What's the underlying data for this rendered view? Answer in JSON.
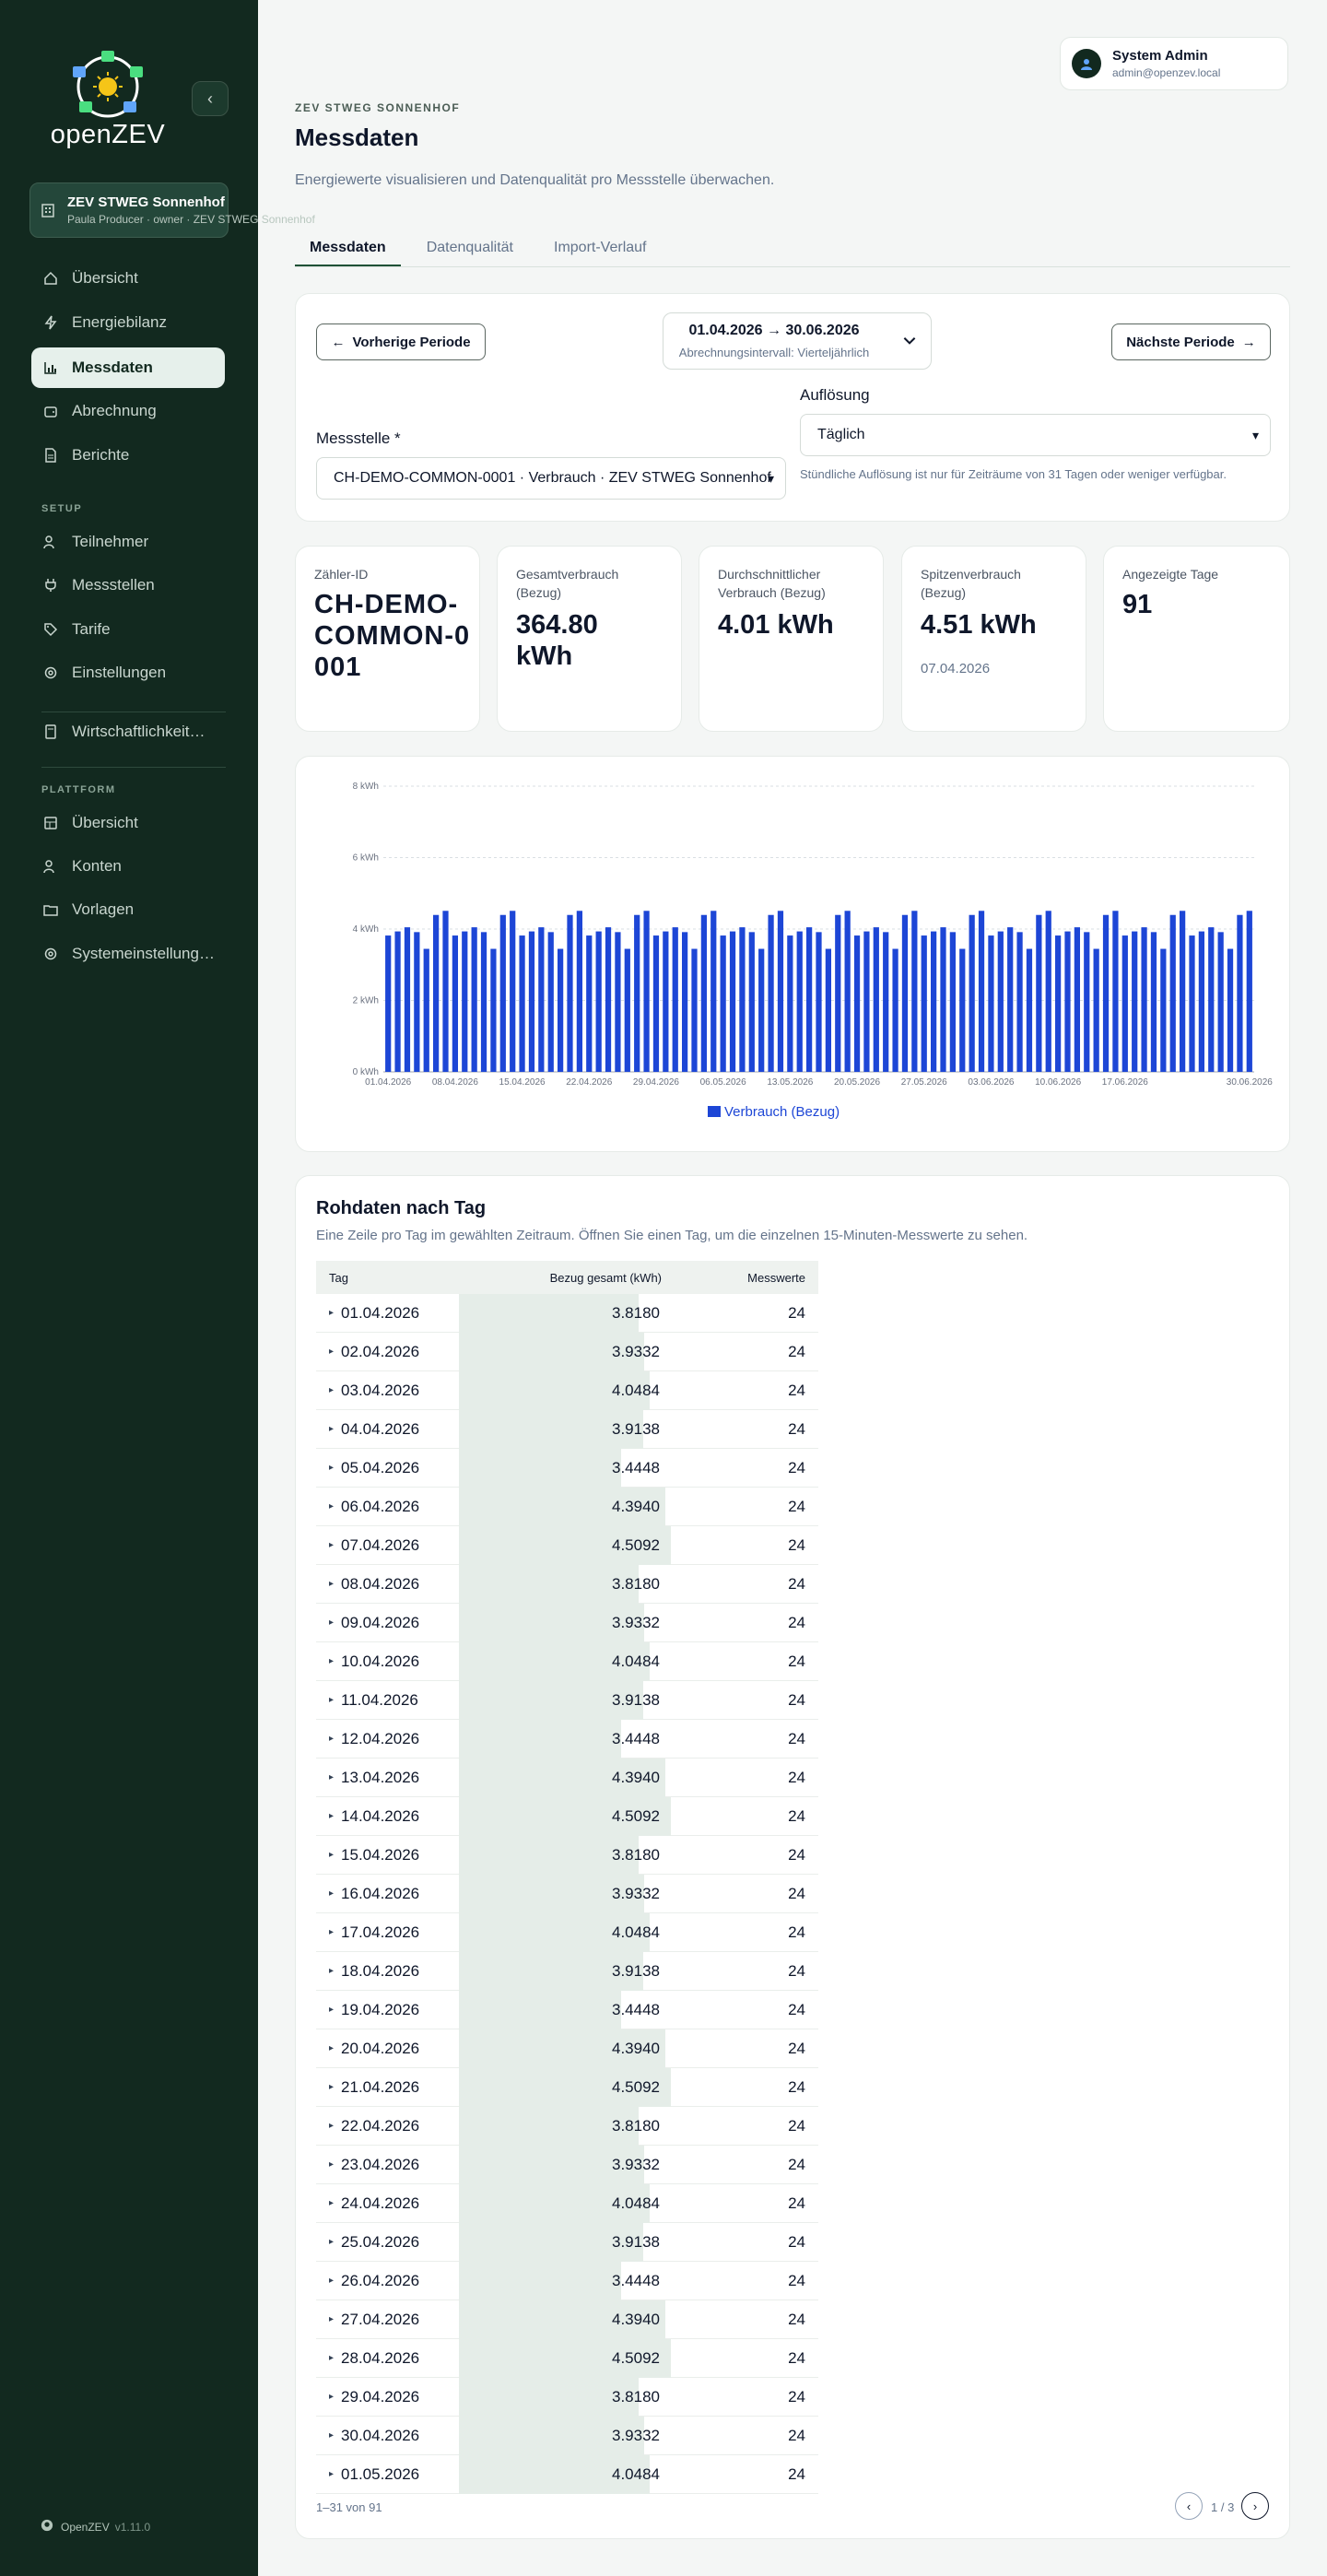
{
  "app": {
    "name": "openZEV",
    "version": "v1.11.0",
    "footer_name": "OpenZEV"
  },
  "org": {
    "name": "ZEV STWEG Sonnenhof",
    "sub": "Paula Producer · owner · ZEV STWEG Sonnenhof"
  },
  "sidebar": {
    "main_items": [
      {
        "label": "Übersicht",
        "icon": "home-icon"
      },
      {
        "label": "Energiebilanz",
        "icon": "bolt-icon"
      },
      {
        "label": "Messdaten",
        "icon": "bar-chart-icon",
        "active": true
      },
      {
        "label": "Abrechnung",
        "icon": "wallet-icon"
      },
      {
        "label": "Berichte",
        "icon": "document-icon"
      }
    ],
    "setup_label": "SETUP",
    "setup_items": [
      {
        "label": "Teilnehmer",
        "icon": "users-icon"
      },
      {
        "label": "Messstellen",
        "icon": "plug-icon"
      },
      {
        "label": "Tarife",
        "icon": "tag-icon"
      },
      {
        "label": "Einstellungen",
        "icon": "settings-icon"
      }
    ],
    "extra_item": {
      "label": "Wirtschaftlichkeit…",
      "icon": "calculator-icon"
    },
    "platform_label": "PLATTFORM",
    "platform_items": [
      {
        "label": "Übersicht",
        "icon": "dashboard-icon"
      },
      {
        "label": "Konten",
        "icon": "users-icon"
      },
      {
        "label": "Vorlagen",
        "icon": "folder-icon"
      },
      {
        "label": "Systemeinstellung…",
        "icon": "settings-icon"
      }
    ]
  },
  "user": {
    "name": "System Admin",
    "email": "admin@openzev.local"
  },
  "header": {
    "eyebrow": "ZEV STWEG SONNENHOF",
    "title": "Messdaten",
    "description": "Energiewerte visualisieren und Datenqualität pro Messstelle überwachen."
  },
  "tabs": [
    {
      "label": "Messdaten",
      "active": true
    },
    {
      "label": "Datenqualität"
    },
    {
      "label": "Import-Verlauf"
    }
  ],
  "period": {
    "prev_label": "Vorherige Periode",
    "next_label": "Nächste Periode",
    "range": "01.04.2026 → 30.06.2026",
    "interval": "Abrechnungsintervall: Vierteljährlich"
  },
  "filters": {
    "meter_label": "Messstelle *",
    "meter_value": "CH-DEMO-COMMON-0001 · Verbrauch · ZEV STWEG Sonnenhof",
    "resolution_label": "Auflösung",
    "resolution_value": "Täglich",
    "resolution_hint": "Stündliche Auflösung ist nur für Zeiträume von 31 Tagen oder weniger verfügbar."
  },
  "stats": {
    "meter_id_label": "Zähler-ID",
    "meter_id": "CH-DEMO-COMMON-0001",
    "total_label": "Gesamtverbrauch (Bezug)",
    "total": "364.80 kWh",
    "avg_label": "Durchschnittlicher Verbrauch (Bezug)",
    "avg": "4.01 kWh",
    "peak_label": "Spitzenverbrauch (Bezug)",
    "peak": "4.51 kWh",
    "peak_date": "07.04.2026",
    "days_label": "Angezeigte Tage",
    "days": "91"
  },
  "colors": {
    "bar": "#1d46d6",
    "sidebar": "#12291f",
    "accent": "#1f5136"
  },
  "chart_data": {
    "type": "bar",
    "ylim": [
      0,
      8
    ],
    "yticks": [
      "0 kWh",
      "2 kWh",
      "4 kWh",
      "6 kWh",
      "8 kWh"
    ],
    "xtick_labels": [
      "01.04.2026",
      "08.04.2026",
      "15.04.2026",
      "22.04.2026",
      "29.04.2026",
      "06.05.2026",
      "13.05.2026",
      "20.05.2026",
      "27.05.2026",
      "03.06.2026",
      "10.06.2026",
      "17.06.2026",
      "30.06.2026"
    ],
    "xtick_index": [
      0,
      7,
      14,
      21,
      28,
      35,
      42,
      49,
      56,
      63,
      70,
      77,
      90
    ],
    "series": [
      {
        "name": "Verbrauch (Bezug)",
        "pattern": [
          3.818,
          3.9332,
          4.0484,
          3.9138,
          3.4448,
          4.394,
          4.5092
        ],
        "count": 91
      }
    ]
  },
  "table": {
    "title": "Rohdaten nach Tag",
    "description": "Eine Zeile pro Tag im gewählten Zeitraum. Öffnen Sie einen Tag, um die einzelnen 15-Minuten-Messwerte zu sehen.",
    "headers": [
      "Tag",
      "Bezug gesamt (kWh)",
      "Messwerte"
    ],
    "rows": [
      {
        "day": "01.04.2026",
        "value": "3.8180",
        "count": "24",
        "frac": 0.847
      },
      {
        "day": "02.04.2026",
        "value": "3.9332",
        "count": "24",
        "frac": 0.872
      },
      {
        "day": "03.04.2026",
        "value": "4.0484",
        "count": "24",
        "frac": 0.898
      },
      {
        "day": "04.04.2026",
        "value": "3.9138",
        "count": "24",
        "frac": 0.868
      },
      {
        "day": "05.04.2026",
        "value": "3.4448",
        "count": "24",
        "frac": 0.764
      },
      {
        "day": "06.04.2026",
        "value": "4.3940",
        "count": "24",
        "frac": 0.974
      },
      {
        "day": "07.04.2026",
        "value": "4.5092",
        "count": "24",
        "frac": 1.0
      },
      {
        "day": "08.04.2026",
        "value": "3.8180",
        "count": "24",
        "frac": 0.847
      },
      {
        "day": "09.04.2026",
        "value": "3.9332",
        "count": "24",
        "frac": 0.872
      },
      {
        "day": "10.04.2026",
        "value": "4.0484",
        "count": "24",
        "frac": 0.898
      },
      {
        "day": "11.04.2026",
        "value": "3.9138",
        "count": "24",
        "frac": 0.868
      },
      {
        "day": "12.04.2026",
        "value": "3.4448",
        "count": "24",
        "frac": 0.764
      },
      {
        "day": "13.04.2026",
        "value": "4.3940",
        "count": "24",
        "frac": 0.974
      },
      {
        "day": "14.04.2026",
        "value": "4.5092",
        "count": "24",
        "frac": 1.0
      },
      {
        "day": "15.04.2026",
        "value": "3.8180",
        "count": "24",
        "frac": 0.847
      },
      {
        "day": "16.04.2026",
        "value": "3.9332",
        "count": "24",
        "frac": 0.872
      },
      {
        "day": "17.04.2026",
        "value": "4.0484",
        "count": "24",
        "frac": 0.898
      },
      {
        "day": "18.04.2026",
        "value": "3.9138",
        "count": "24",
        "frac": 0.868
      },
      {
        "day": "19.04.2026",
        "value": "3.4448",
        "count": "24",
        "frac": 0.764
      },
      {
        "day": "20.04.2026",
        "value": "4.3940",
        "count": "24",
        "frac": 0.974
      },
      {
        "day": "21.04.2026",
        "value": "4.5092",
        "count": "24",
        "frac": 1.0
      },
      {
        "day": "22.04.2026",
        "value": "3.8180",
        "count": "24",
        "frac": 0.847
      },
      {
        "day": "23.04.2026",
        "value": "3.9332",
        "count": "24",
        "frac": 0.872
      },
      {
        "day": "24.04.2026",
        "value": "4.0484",
        "count": "24",
        "frac": 0.898
      },
      {
        "day": "25.04.2026",
        "value": "3.9138",
        "count": "24",
        "frac": 0.868
      },
      {
        "day": "26.04.2026",
        "value": "3.4448",
        "count": "24",
        "frac": 0.764
      },
      {
        "day": "27.04.2026",
        "value": "4.3940",
        "count": "24",
        "frac": 0.974
      },
      {
        "day": "28.04.2026",
        "value": "4.5092",
        "count": "24",
        "frac": 1.0
      },
      {
        "day": "29.04.2026",
        "value": "3.8180",
        "count": "24",
        "frac": 0.847
      },
      {
        "day": "30.04.2026",
        "value": "3.9332",
        "count": "24",
        "frac": 0.872
      },
      {
        "day": "01.05.2026",
        "value": "4.0484",
        "count": "24",
        "frac": 0.898
      }
    ],
    "range_info": "1–31 von 91",
    "page_info": "1 / 3"
  }
}
